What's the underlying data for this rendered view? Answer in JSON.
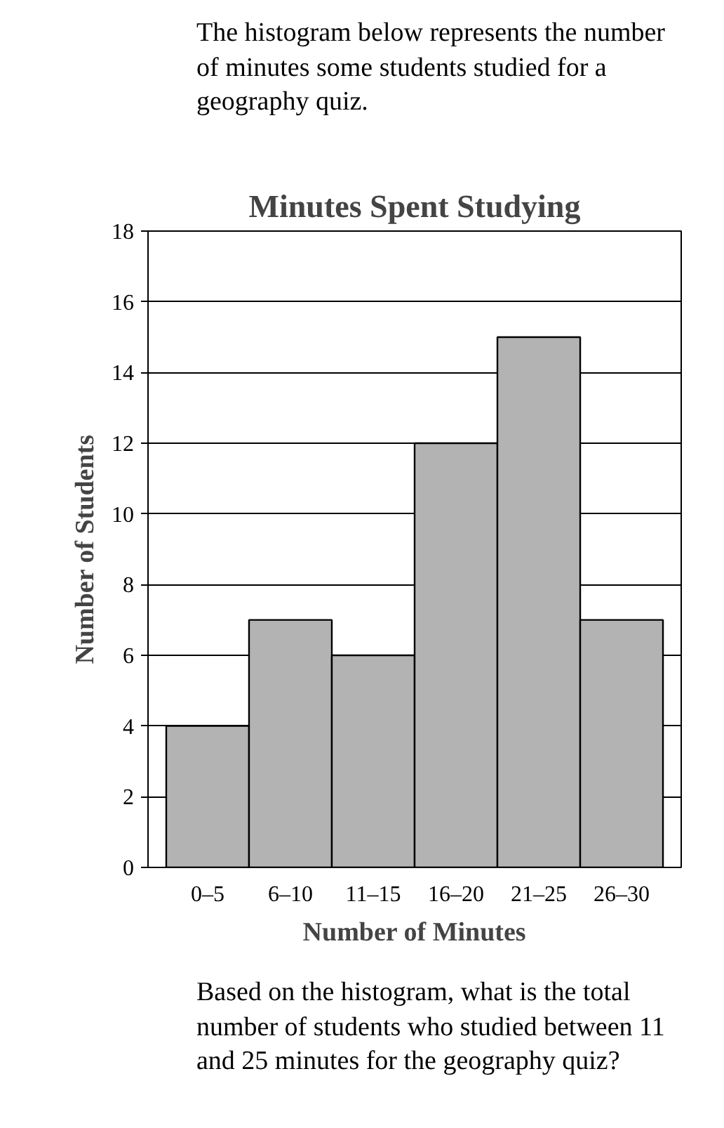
{
  "chart_data": {
    "type": "bar",
    "title": "Minutes Spent Studying",
    "xlabel": "Number of Minutes",
    "ylabel": "Number of Students",
    "categories": [
      "0–5",
      "6–10",
      "11–15",
      "16–20",
      "21–25",
      "26–30"
    ],
    "values": [
      4,
      7,
      6,
      12,
      15,
      7
    ],
    "color": "#b3b3b3",
    "ylim": [
      0,
      18
    ],
    "yticks": [
      0,
      2,
      4,
      6,
      8,
      10,
      12,
      14,
      16,
      18
    ],
    "grid": "y",
    "annotations": [
      "The histogram below represents the number of minutes some students studied for a geography quiz.",
      "Based on the histogram, what is the total number of students who studied between 11 and 25 minutes for the geography quiz?"
    ]
  }
}
